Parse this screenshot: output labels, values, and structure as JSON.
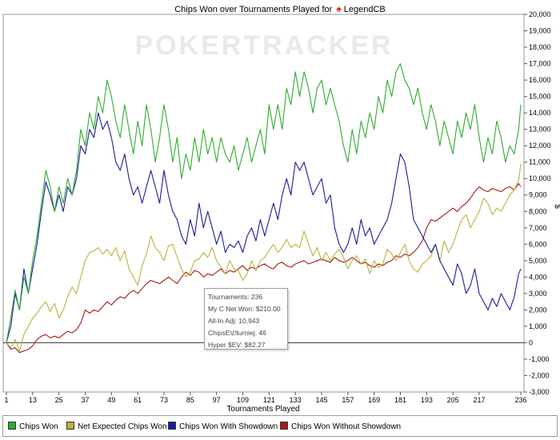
{
  "title_prefix": "Chips Won over Tournaments Played for",
  "player": "LegendCB",
  "watermark": "POKERTRACKER",
  "colors": {
    "chips_won": "#2eac2e",
    "net_expected": "#bbb23a",
    "with_showdown": "#1c1c98",
    "without_showdown": "#a81a1a"
  },
  "tooltip": {
    "lines": [
      "Tournaments: 236",
      "My C Net Won: $210.00",
      "All-In Adj: 10,943",
      "ChipsEV/turniej: 46",
      "Hyper $EV: $82.27"
    ]
  },
  "legend": [
    {
      "label": "Chips Won",
      "color": "#2eac2e"
    },
    {
      "label": "Net Expected Chips Won",
      "color": "#bbb23a"
    },
    {
      "label": "Chips Won With Showdown",
      "color": "#1c1c98"
    },
    {
      "label": "Chips Won Without Showdown",
      "color": "#a81a1a"
    }
  ],
  "chart_data": {
    "type": "line",
    "title": "Chips Won over Tournaments Played for LegendCB",
    "xlabel": "Tournaments Played",
    "ylabel": "$",
    "xlim": [
      1,
      236
    ],
    "ylim": [
      -3000,
      20000
    ],
    "x_ticks": [
      1,
      13,
      25,
      37,
      49,
      61,
      73,
      85,
      97,
      109,
      121,
      133,
      145,
      157,
      169,
      181,
      193,
      205,
      217,
      236
    ],
    "y_ticks": [
      -3000,
      -2000,
      -1000,
      0,
      1000,
      2000,
      3000,
      4000,
      5000,
      6000,
      7000,
      8000,
      9000,
      10000,
      11000,
      12000,
      13000,
      14000,
      15000,
      16000,
      17000,
      18000,
      19000,
      20000
    ],
    "y_tick_labels": [
      "-3,000",
      "-2,000",
      "-1,000",
      "0",
      "1,000",
      "2,000",
      "3,000",
      "4,000",
      "5,000",
      "6,000",
      "7,000",
      "8,000",
      "9,000",
      "10,000",
      "11,000",
      "12,000",
      "13,000",
      "14,000",
      "15,000",
      "16,000",
      "17,000",
      "18,000",
      "19,000",
      "20,000"
    ],
    "grid": false,
    "legend_position": "bottom",
    "series": [
      {
        "name": "Chips Won",
        "x": [
          1,
          3,
          5,
          7,
          9,
          11,
          13,
          15,
          17,
          19,
          21,
          23,
          25,
          27,
          29,
          31,
          33,
          35,
          37,
          39,
          41,
          43,
          45,
          47,
          49,
          51,
          53,
          55,
          57,
          59,
          61,
          63,
          65,
          67,
          69,
          71,
          73,
          75,
          77,
          79,
          81,
          83,
          85,
          87,
          89,
          91,
          93,
          95,
          97,
          99,
          101,
          103,
          105,
          107,
          109,
          111,
          113,
          115,
          117,
          119,
          121,
          123,
          125,
          127,
          129,
          131,
          133,
          135,
          137,
          139,
          141,
          143,
          145,
          147,
          149,
          151,
          153,
          155,
          157,
          159,
          161,
          163,
          165,
          167,
          169,
          171,
          173,
          175,
          177,
          179,
          181,
          183,
          185,
          187,
          189,
          191,
          193,
          195,
          197,
          199,
          201,
          203,
          205,
          207,
          209,
          211,
          213,
          215,
          217,
          219,
          221,
          223,
          225,
          227,
          229,
          231,
          233,
          235,
          236
        ],
        "y": [
          0,
          1500,
          3200,
          2000,
          4000,
          3000,
          5000,
          6500,
          8500,
          10500,
          9500,
          8000,
          9500,
          8500,
          10000,
          9000,
          10500,
          13000,
          12000,
          14000,
          13000,
          15000,
          14000,
          16000,
          15000,
          13500,
          12500,
          14500,
          13000,
          11500,
          13500,
          12000,
          14500,
          13000,
          11000,
          12500,
          14500,
          13000,
          11000,
          12500,
          10000,
          11500,
          10500,
          12500,
          11000,
          13000,
          11500,
          12500,
          11000,
          12500,
          11500,
          11000,
          12000,
          10500,
          11500,
          12500,
          11000,
          12000,
          13000,
          11500,
          14500,
          13000,
          14500,
          13000,
          15500,
          14500,
          16500,
          15000,
          16500,
          15500,
          14000,
          15500,
          16000,
          14500,
          15500,
          14500,
          13500,
          12000,
          11000,
          13000,
          11500,
          13500,
          12500,
          14000,
          13000,
          15000,
          14000,
          16000,
          15000,
          16500,
          17000,
          16000,
          15500,
          14500,
          15500,
          14000,
          13000,
          14500,
          13500,
          12000,
          13500,
          12500,
          11500,
          13500,
          12500,
          14000,
          13000,
          14500,
          12500,
          11000,
          12500,
          11500,
          13500,
          12500,
          11000,
          12000,
          11500,
          13000,
          14500
        ]
      },
      {
        "name": "Net Expected Chips Won",
        "x": [
          1,
          3,
          5,
          7,
          9,
          11,
          13,
          15,
          17,
          19,
          21,
          23,
          25,
          27,
          29,
          31,
          33,
          35,
          37,
          39,
          41,
          43,
          45,
          47,
          49,
          51,
          53,
          55,
          57,
          59,
          61,
          63,
          65,
          67,
          69,
          71,
          73,
          75,
          77,
          79,
          81,
          83,
          85,
          87,
          89,
          91,
          93,
          95,
          97,
          99,
          101,
          103,
          105,
          107,
          109,
          111,
          113,
          115,
          117,
          119,
          121,
          123,
          125,
          127,
          129,
          131,
          133,
          135,
          137,
          139,
          141,
          143,
          145,
          147,
          149,
          151,
          153,
          155,
          157,
          159,
          161,
          163,
          165,
          167,
          169,
          171,
          173,
          175,
          177,
          179,
          181,
          183,
          185,
          187,
          189,
          191,
          193,
          195,
          197,
          199,
          201,
          203,
          205,
          207,
          209,
          211,
          213,
          215,
          217,
          219,
          221,
          223,
          225,
          227,
          229,
          231,
          233,
          235,
          236
        ],
        "y": [
          0,
          -300,
          200,
          -500,
          500,
          1000,
          1500,
          1800,
          2200,
          2500,
          1900,
          2400,
          1500,
          2000,
          2800,
          3400,
          3000,
          4000,
          5000,
          5500,
          5600,
          5800,
          5400,
          5700,
          5300,
          5800,
          5000,
          5600,
          4500,
          4000,
          3500,
          4700,
          5400,
          6500,
          5800,
          5500,
          5000,
          5900,
          6000,
          5200,
          4500,
          4000,
          4300,
          5000,
          5100,
          5500,
          5200,
          5800,
          5000,
          4600,
          4200,
          5000,
          4500,
          4400,
          3800,
          4200,
          5000,
          4400,
          5000,
          5200,
          5600,
          6000,
          5500,
          5800,
          6300,
          5800,
          6000,
          5800,
          6800,
          6000,
          5300,
          5800,
          5000,
          5500,
          5000,
          5400,
          5700,
          5200,
          4500,
          5000,
          5300,
          4800,
          5100,
          4200,
          5000,
          4600,
          4800,
          5700,
          5400,
          5000,
          5500,
          6000,
          5000,
          4500,
          4300,
          4800,
          5000,
          5300,
          6000,
          5000,
          6200,
          5500,
          6000,
          6800,
          7500,
          7800,
          7000,
          7500,
          8000,
          8800,
          8500,
          7800,
          8200,
          8000,
          8500,
          9000,
          9300,
          9900,
          10900
        ]
      },
      {
        "name": "Chips Won With Showdown",
        "x": [
          1,
          3,
          5,
          7,
          9,
          11,
          13,
          15,
          17,
          19,
          21,
          23,
          25,
          27,
          29,
          31,
          33,
          35,
          37,
          39,
          41,
          43,
          45,
          47,
          49,
          51,
          53,
          55,
          57,
          59,
          61,
          63,
          65,
          67,
          69,
          71,
          73,
          75,
          77,
          79,
          81,
          83,
          85,
          87,
          89,
          91,
          93,
          95,
          97,
          99,
          101,
          103,
          105,
          107,
          109,
          111,
          113,
          115,
          117,
          119,
          121,
          123,
          125,
          127,
          129,
          131,
          133,
          135,
          137,
          139,
          141,
          143,
          145,
          147,
          149,
          151,
          153,
          155,
          157,
          159,
          161,
          163,
          165,
          167,
          169,
          171,
          173,
          175,
          177,
          179,
          181,
          183,
          185,
          187,
          189,
          191,
          193,
          195,
          197,
          199,
          201,
          203,
          205,
          207,
          209,
          211,
          213,
          215,
          217,
          219,
          221,
          223,
          225,
          227,
          229,
          231,
          233,
          235,
          236
        ],
        "y": [
          0,
          1000,
          3000,
          2000,
          4500,
          3000,
          4500,
          6000,
          8000,
          9800,
          9000,
          8000,
          9000,
          8000,
          9500,
          9000,
          10000,
          12000,
          11500,
          13000,
          12500,
          14000,
          13000,
          13500,
          12500,
          11000,
          10500,
          11500,
          10000,
          9000,
          9500,
          8500,
          9500,
          10500,
          9500,
          8500,
          10500,
          9000,
          8000,
          7500,
          6500,
          6000,
          7500,
          6500,
          8500,
          7000,
          8000,
          7000,
          6000,
          6800,
          5500,
          6000,
          5800,
          6200,
          5500,
          6500,
          7000,
          6200,
          7500,
          6500,
          7500,
          8500,
          7500,
          9000,
          10000,
          9000,
          11000,
          10500,
          11000,
          10000,
          9000,
          9500,
          10000,
          8500,
          9000,
          7000,
          6000,
          5500,
          6000,
          7000,
          6000,
          7500,
          6500,
          7000,
          6000,
          6500,
          7000,
          7500,
          8500,
          10000,
          11500,
          11000,
          9500,
          7500,
          7000,
          6500,
          6000,
          5500,
          6000,
          5000,
          4500,
          4000,
          3500,
          4800,
          4200,
          3000,
          3500,
          4500,
          3000,
          2500,
          2000,
          2700,
          2200,
          3000,
          2500,
          2000,
          2800,
          4200,
          4500
        ]
      },
      {
        "name": "Chips Won Without Showdown",
        "x": [
          1,
          3,
          5,
          7,
          9,
          11,
          13,
          15,
          17,
          19,
          21,
          23,
          25,
          27,
          29,
          31,
          33,
          35,
          37,
          39,
          41,
          43,
          45,
          47,
          49,
          51,
          53,
          55,
          57,
          59,
          61,
          63,
          65,
          67,
          69,
          71,
          73,
          75,
          77,
          79,
          81,
          83,
          85,
          87,
          89,
          91,
          93,
          95,
          97,
          99,
          101,
          103,
          105,
          107,
          109,
          111,
          113,
          115,
          117,
          119,
          121,
          123,
          125,
          127,
          129,
          131,
          133,
          135,
          137,
          139,
          141,
          143,
          145,
          147,
          149,
          151,
          153,
          155,
          157,
          159,
          161,
          163,
          165,
          167,
          169,
          171,
          173,
          175,
          177,
          179,
          181,
          183,
          185,
          187,
          189,
          191,
          193,
          195,
          197,
          199,
          201,
          203,
          205,
          207,
          209,
          211,
          213,
          215,
          217,
          219,
          221,
          223,
          225,
          227,
          229,
          231,
          233,
          235,
          236
        ],
        "y": [
          0,
          -400,
          -300,
          -600,
          -500,
          -400,
          -200,
          200,
          400,
          500,
          300,
          400,
          300,
          500,
          700,
          600,
          800,
          1200,
          2000,
          1800,
          2000,
          1900,
          2200,
          2500,
          2300,
          2600,
          2800,
          2700,
          3000,
          3200,
          3000,
          3300,
          3600,
          3800,
          3700,
          3600,
          3800,
          4000,
          3800,
          3600,
          4000,
          4300,
          4100,
          4400,
          4300,
          4000,
          4200,
          4100,
          4300,
          4500,
          4200,
          4400,
          4300,
          4500,
          4700,
          4400,
          4600,
          4500,
          4700,
          4800,
          4600,
          4500,
          4800,
          4900,
          4700,
          4600,
          4800,
          4900,
          5000,
          4800,
          4900,
          5000,
          5100,
          5000,
          4900,
          5200,
          5000,
          4900,
          5000,
          5200,
          5000,
          4800,
          4900,
          4700,
          4600,
          4800,
          4700,
          4900,
          5000,
          5300,
          5200,
          5400,
          5300,
          5500,
          5800,
          6200,
          7000,
          7500,
          7400,
          7600,
          7800,
          8000,
          8200,
          8000,
          8300,
          8500,
          8800,
          9200,
          9500,
          9300,
          9200,
          9400,
          9300,
          9200,
          9400,
          9500,
          9300,
          9700,
          9500
        ]
      }
    ]
  }
}
